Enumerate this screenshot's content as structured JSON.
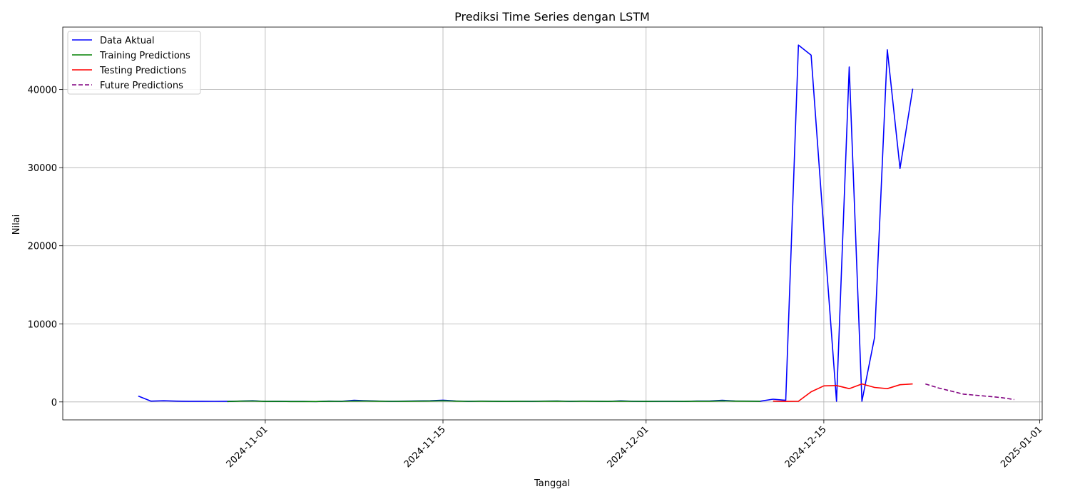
{
  "chart_data": {
    "type": "line",
    "title": "Prediksi Time Series dengan LSTM",
    "xlabel": "Tanggal",
    "ylabel": "Nilai",
    "grid": true,
    "legend_position": "top-left",
    "x_ticks": [
      "2024-11-01",
      "2024-11-15",
      "2024-12-01",
      "2024-12-15",
      "2025-01-01"
    ],
    "y_ticks": [
      0,
      10000,
      20000,
      30000,
      40000
    ],
    "xlim": [
      "2024-10-18",
      "2025-01-01"
    ],
    "ylim": [
      -2300,
      48000
    ],
    "series": [
      {
        "name": "Data Aktual",
        "color": "#0000ff",
        "style": "solid",
        "x": [
          "2024-10-22",
          "2024-10-23",
          "2024-10-24",
          "2024-10-25",
          "2024-10-26",
          "2024-10-27",
          "2024-10-28",
          "2024-10-29",
          "2024-10-30",
          "2024-10-31",
          "2024-11-01",
          "2024-11-02",
          "2024-11-03",
          "2024-11-04",
          "2024-11-05",
          "2024-11-06",
          "2024-11-07",
          "2024-11-08",
          "2024-11-09",
          "2024-11-10",
          "2024-11-11",
          "2024-11-12",
          "2024-11-13",
          "2024-11-14",
          "2024-11-15",
          "2024-11-16",
          "2024-11-17",
          "2024-11-18",
          "2024-11-19",
          "2024-11-20",
          "2024-11-21",
          "2024-11-22",
          "2024-11-23",
          "2024-11-24",
          "2024-11-25",
          "2024-11-26",
          "2024-11-27",
          "2024-11-28",
          "2024-11-29",
          "2024-11-30",
          "2024-12-01",
          "2024-12-02",
          "2024-12-03",
          "2024-12-04",
          "2024-12-05",
          "2024-12-06",
          "2024-12-07",
          "2024-12-08",
          "2024-12-09",
          "2024-12-10",
          "2024-12-11",
          "2024-12-12",
          "2024-12-13",
          "2024-12-14",
          "2024-12-15",
          "2024-12-16",
          "2024-12-17",
          "2024-12-18",
          "2024-12-19",
          "2024-12-20",
          "2024-12-21",
          "2024-12-22",
          "2024-12-23"
        ],
        "values": [
          750,
          100,
          150,
          100,
          80,
          80,
          70,
          80,
          100,
          150,
          70,
          80,
          60,
          60,
          50,
          100,
          80,
          200,
          150,
          100,
          80,
          100,
          130,
          150,
          220,
          120,
          80,
          100,
          90,
          70,
          90,
          80,
          100,
          110,
          80,
          100,
          90,
          70,
          140,
          80,
          60,
          80,
          80,
          60,
          120,
          110,
          200,
          120,
          100,
          90,
          350,
          200,
          45700,
          44400,
          22000,
          80,
          42900,
          80,
          8300,
          45100,
          29900,
          40100,
          null
        ]
      },
      {
        "name": "Training Predictions",
        "color": "#008000",
        "style": "solid",
        "x": [
          "2024-10-29",
          "2024-10-30",
          "2024-10-31",
          "2024-11-01",
          "2024-11-02",
          "2024-11-03",
          "2024-11-04",
          "2024-11-05",
          "2024-11-06",
          "2024-11-07",
          "2024-11-08",
          "2024-11-09",
          "2024-11-10",
          "2024-11-11",
          "2024-11-12",
          "2024-11-13",
          "2024-11-14",
          "2024-11-15",
          "2024-11-16",
          "2024-11-17",
          "2024-11-18",
          "2024-11-19",
          "2024-11-20",
          "2024-11-21",
          "2024-11-22",
          "2024-11-23",
          "2024-11-24",
          "2024-11-25",
          "2024-11-26",
          "2024-11-27",
          "2024-11-28",
          "2024-11-29",
          "2024-11-30",
          "2024-12-01",
          "2024-12-02",
          "2024-12-03",
          "2024-12-04",
          "2024-12-05",
          "2024-12-06",
          "2024-12-07",
          "2024-12-08",
          "2024-12-09",
          "2024-12-10"
        ],
        "values": [
          50,
          100,
          120,
          60,
          70,
          50,
          50,
          50,
          80,
          70,
          120,
          110,
          90,
          70,
          80,
          100,
          110,
          150,
          100,
          70,
          90,
          80,
          60,
          80,
          70,
          90,
          100,
          70,
          90,
          80,
          60,
          100,
          70,
          60,
          70,
          70,
          60,
          90,
          90,
          140,
          100,
          90,
          80
        ]
      },
      {
        "name": "Testing Predictions",
        "color": "#ff0000",
        "style": "solid",
        "x": [
          "2024-12-11",
          "2024-12-12",
          "2024-12-13",
          "2024-12-14",
          "2024-12-15",
          "2024-12-16",
          "2024-12-17",
          "2024-12-18",
          "2024-12-19",
          "2024-12-20",
          "2024-12-21",
          "2024-12-22"
        ],
        "values": [
          100,
          60,
          80,
          1300,
          2050,
          2100,
          1700,
          2300,
          1850,
          1700,
          2200,
          2300
        ]
      },
      {
        "name": "Future Predictions",
        "color": "#800080",
        "style": "dashed",
        "x": [
          "2024-12-23",
          "2024-12-24",
          "2024-12-25",
          "2024-12-26",
          "2024-12-27",
          "2024-12-28",
          "2024-12-29",
          "2024-12-30"
        ],
        "values": [
          2300,
          1800,
          1400,
          1000,
          850,
          700,
          550,
          300
        ]
      }
    ]
  }
}
